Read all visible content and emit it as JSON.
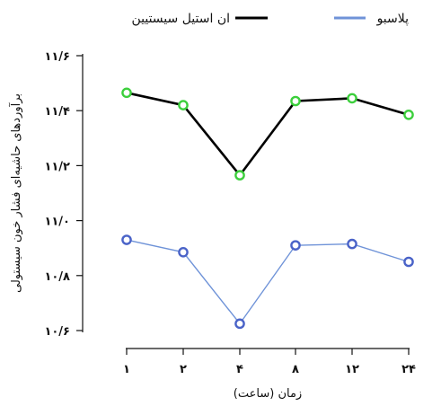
{
  "chart_data": {
    "type": "line",
    "categories": [
      "۱",
      "۲",
      "۴",
      "۸",
      "۱۲",
      "۲۴"
    ],
    "xlabel": "زمان (ساعت)",
    "ylabel": "برآوردهای حاشیه‌ای فشار خون سیستولی",
    "ylim": [
      10.6,
      11.6
    ],
    "yticks": [
      10.6,
      10.8,
      11.0,
      11.2,
      11.4,
      11.6
    ],
    "ytick_labels": [
      "۱۰/۶",
      "۱۰/۸",
      "۱۱/۰",
      "۱۱/۲",
      "۱۱/۴",
      "۱۱/۶"
    ],
    "grid": false,
    "legend_position": "top",
    "series": [
      {
        "name": "ان استیل سیستیین",
        "values": [
          11.465,
          11.42,
          11.165,
          11.435,
          11.445,
          11.385
        ],
        "line_color": "#000000",
        "marker_color": "#3ccf3c"
      },
      {
        "name": "پلاسبو",
        "values": [
          10.93,
          10.885,
          10.625,
          10.91,
          10.915,
          10.85
        ],
        "line_color": "#6f93d8",
        "marker_color": "#4a63c8"
      }
    ]
  }
}
